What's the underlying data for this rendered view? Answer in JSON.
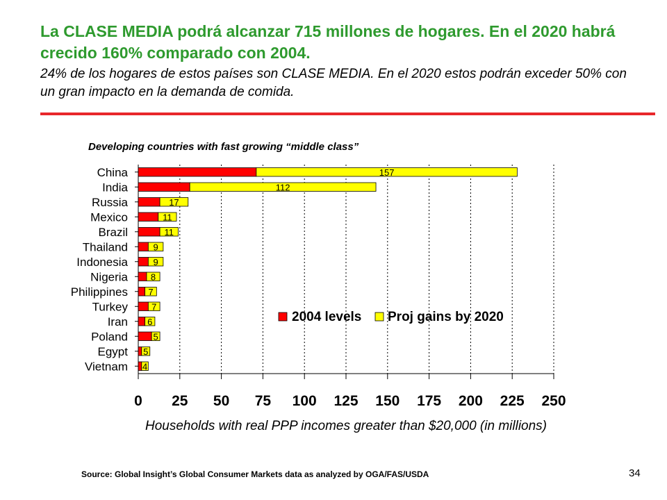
{
  "slide": {
    "title_main": "La CLASE MEDIA podrá alcanzar 715 millones de hogares. En el 2020 habrá crecido 160% comparado con  2004.",
    "title_sub": "24% de los hogares de estos países son CLASE MEDIA. En el 2020 estos podrán exceder 50% con un gran impacto en la demanda de comida.",
    "source": "Source:  Global Insight’s Global Consumer Markets data as analyzed by OGA/FAS/USDA",
    "page_number": "34",
    "accent_color": "#e8272b",
    "title_color": "#2e9a2e"
  },
  "chart_data": {
    "type": "bar",
    "orientation": "horizontal",
    "stacked": true,
    "title": "Developing countries with fast growing “middle class”",
    "xlabel": "Households with real PPP incomes greater than $20,000 (in millions)",
    "ylabel": "",
    "xlim": [
      0,
      250
    ],
    "xticks": [
      "0",
      "25",
      "50",
      "75",
      "100",
      "125",
      "150",
      "175",
      "200",
      "225",
      "250"
    ],
    "grid": "vertical dotted",
    "legend_position": "lower-right",
    "categories": [
      "China",
      "India",
      "Russia",
      "Mexico",
      "Brazil",
      "Thailand",
      "Indonesia",
      "Nigeria",
      "Philippines",
      "Turkey",
      "Iran",
      "Poland",
      "Egypt",
      "Vietnam"
    ],
    "series": [
      {
        "name": "2004 levels",
        "color": "#ff0000",
        "values": [
          71,
          31,
          13,
          12,
          13,
          6,
          6,
          5,
          4,
          6,
          4,
          8,
          2,
          2
        ]
      },
      {
        "name": "Proj gains by 2020",
        "color": "#ffff00",
        "values": [
          157,
          112,
          17,
          11,
          11,
          9,
          9,
          8,
          7,
          7,
          6,
          5,
          5,
          4
        ]
      }
    ],
    "data_labels": [
      "157",
      "112",
      "17",
      "11",
      "11",
      "9",
      "9",
      "8",
      "7",
      "7",
      "6",
      "5",
      "5",
      "4"
    ]
  }
}
